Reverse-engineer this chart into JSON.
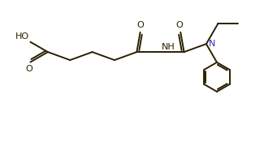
{
  "bg_color": "#ffffff",
  "line_color": "#2a2000",
  "N_color": "#3030a0",
  "line_width": 1.4,
  "font_size": 8.0,
  "fig_width": 3.41,
  "fig_height": 1.8,
  "dpi": 100,
  "xlim": [
    0,
    10.5
  ],
  "ylim": [
    -2.8,
    2.2
  ]
}
